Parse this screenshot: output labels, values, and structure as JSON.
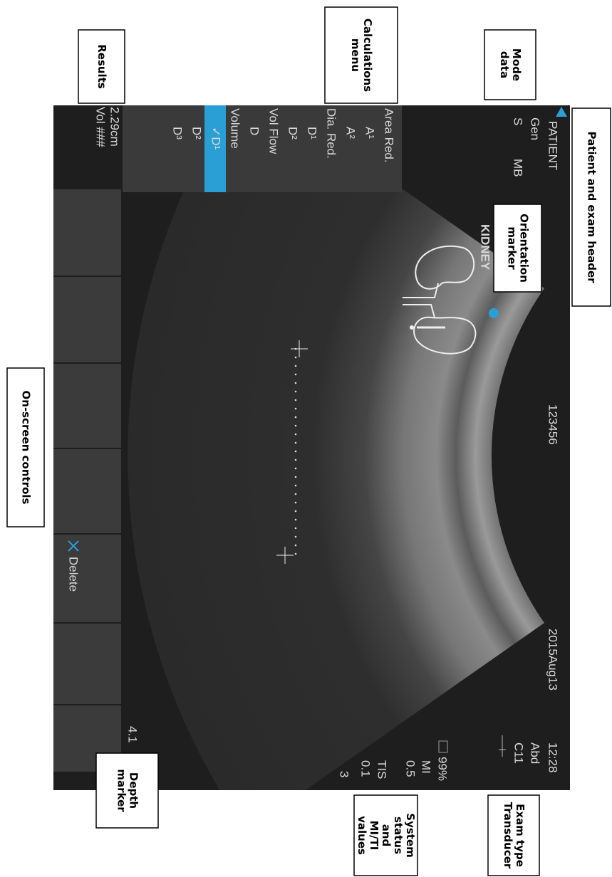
{
  "header": {
    "patient": "PATIENT",
    "mode": [
      "Gen",
      "S",
      "MB"
    ],
    "id": "123456",
    "date": "2015Aug13",
    "time": "12:28",
    "exam": "Abd",
    "transducer": "C11"
  },
  "menu": {
    "items": [
      "Area Red.",
      "A¹",
      "A²",
      "Dia. Red.",
      "D¹",
      "D²",
      "Vol Flow",
      "D",
      "Volume",
      "✓D¹",
      "D²",
      "D³"
    ],
    "selected": 9
  },
  "results": [
    "2.29cm",
    "Vol ###"
  ],
  "measurement": [
    "D¹  2.29cm",
    "Vol: ###"
  ],
  "annotation": "KIDNEY",
  "status": [
    "99%",
    "MI",
    "0.5",
    "TIS",
    "0.1",
    "3"
  ],
  "depth": "4.1",
  "controls": {
    "delete": "Delete"
  },
  "callouts": [
    {
      "lines": [
        "Patient and exam header"
      ]
    },
    {
      "lines": [
        "Mode",
        "data"
      ]
    },
    {
      "lines": [
        "Calculations",
        "menu"
      ]
    },
    {
      "lines": [
        "Results"
      ]
    },
    {
      "lines": [
        "Orientation",
        "marker"
      ]
    },
    {
      "lines": [
        "On-screen controls"
      ]
    },
    {
      "lines": [
        "Depth",
        "marker"
      ]
    },
    {
      "lines": [
        "System",
        "status",
        "and",
        "MI/TI",
        "values"
      ]
    },
    {
      "lines": [
        "Exam type",
        "Transducer"
      ]
    }
  ]
}
